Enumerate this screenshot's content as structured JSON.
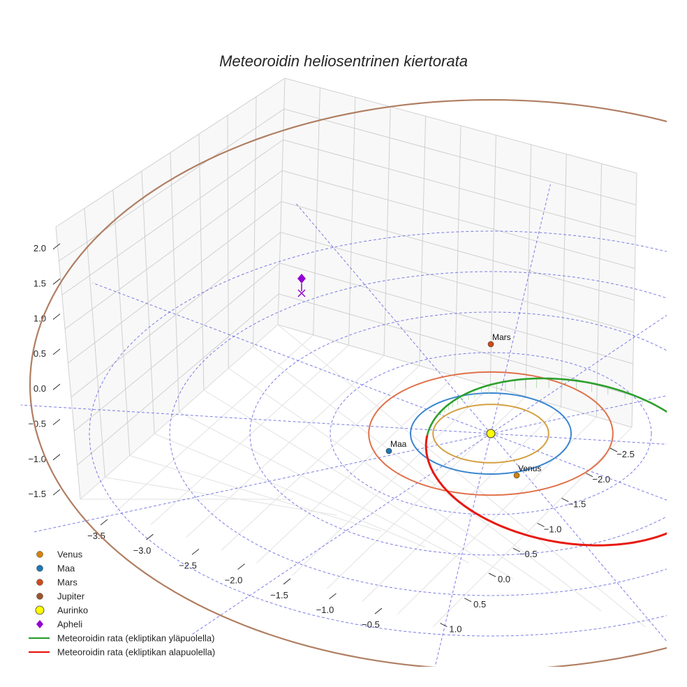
{
  "chart_data": {
    "type": "3d-orbit",
    "title": "Meteoroidin heliosentrinen kiertorata",
    "axes": {
      "x_ticks": [
        "−3.5",
        "−3.0",
        "−2.5",
        "−2.0",
        "−1.5",
        "−1.0",
        "−0.5"
      ],
      "y_ticks": [
        "−2.5",
        "−2.0",
        "−1.5",
        "−1.0",
        "−0.5",
        "0.0",
        "0.5",
        "1.0"
      ],
      "z_ticks": [
        "2.0",
        "1.5",
        "1.0",
        "0.5",
        "0.0",
        "−0.5",
        "−1.0",
        "−1.5"
      ]
    },
    "planets": [
      {
        "name": "Venus",
        "orbit_radius_au": 0.72,
        "color": "#d4a040",
        "marker_color": "#d4820a",
        "label": "Venus"
      },
      {
        "name": "Maa",
        "orbit_radius_au": 1.0,
        "color": "#3a86d0",
        "marker_color": "#1f77b4",
        "label": "Maa"
      },
      {
        "name": "Mars",
        "orbit_radius_au": 1.52,
        "color": "#e0714a",
        "marker_color": "#d04a1a",
        "label": "Mars"
      },
      {
        "name": "Jupiter",
        "orbit_radius_au": 5.2,
        "color": "#b07e62",
        "marker_color": "#a0522d",
        "label": ""
      }
    ],
    "sun": {
      "name": "Aurinko",
      "color": "#ffff00"
    },
    "aphelion": {
      "name": "Apheli",
      "distance_au": 3.0,
      "height_au": 1.6,
      "color": "#9400d3"
    },
    "meteoroid_orbit": {
      "perihelion_au": 0.75,
      "aphelion_au": 3.0,
      "inclination_deg": 30,
      "above_ecliptic_color": "#2ca02c",
      "below_ecliptic_color": "#e8190f"
    },
    "ecliptic_grid": {
      "radii_au": [
        1,
        2,
        3,
        4,
        5
      ],
      "spokes": 12,
      "color": "#5b5bdf"
    },
    "legend": [
      {
        "label": "Venus",
        "kind": "dot",
        "color": "#d4820a"
      },
      {
        "label": "Maa",
        "kind": "dot",
        "color": "#1f77b4"
      },
      {
        "label": "Mars",
        "kind": "dot",
        "color": "#d04a1a"
      },
      {
        "label": "Jupiter",
        "kind": "dot",
        "color": "#a0522d"
      },
      {
        "label": "Aurinko",
        "kind": "sun",
        "color": "#ffff00"
      },
      {
        "label": "Apheli",
        "kind": "diamond",
        "color": "#9400d3"
      },
      {
        "label": "Meteoroidin rata (ekliptikan yläpuolella)",
        "kind": "line",
        "color": "#2ca02c"
      },
      {
        "label": "Meteoroidin rata (ekliptikan alapuolella)",
        "kind": "line",
        "color": "#e8190f"
      }
    ]
  }
}
